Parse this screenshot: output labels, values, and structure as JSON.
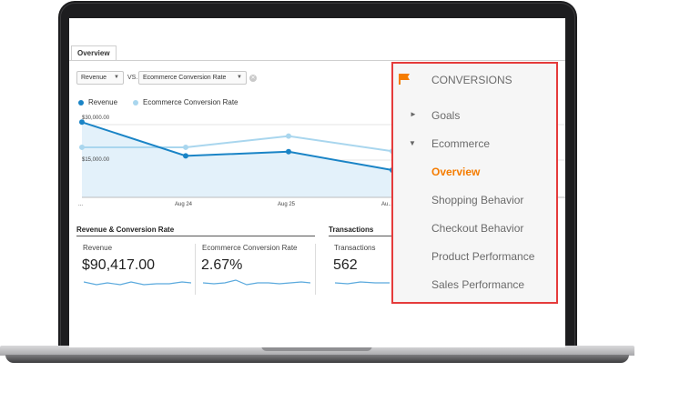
{
  "report": {
    "tab": "Overview",
    "metric_primary": "Revenue",
    "vs_label": "VS.",
    "metric_secondary": "Ecommerce Conversion Rate"
  },
  "legend": [
    {
      "label": "Revenue",
      "color": "#1a84c6"
    },
    {
      "label": "Ecommerce Conversion Rate",
      "color": "#a9d6ee"
    }
  ],
  "chart_data": {
    "type": "line",
    "x": [
      "...",
      "Aug 24",
      "Aug 25",
      "Au..."
    ],
    "y_ticks": [
      "$30,000.00",
      "$15,000.00"
    ],
    "series": [
      {
        "name": "Revenue",
        "values": [
          29000,
          16000,
          17600,
          10500
        ]
      },
      {
        "name": "Ecommerce Conversion Rate",
        "values": [
          19300,
          19300,
          23600,
          17800
        ]
      }
    ],
    "ylim": [
      0,
      34000
    ]
  },
  "sections": {
    "revenue_conversion_title": "Revenue & Conversion Rate",
    "transactions_title": "Transactions"
  },
  "metrics": [
    {
      "label": "Revenue",
      "value": "$90,417.00"
    },
    {
      "label": "Ecommerce Conversion Rate",
      "value": "2.67%"
    },
    {
      "label": "Transactions",
      "value": "562"
    }
  ],
  "sparkline_color": "#5aa9dd",
  "conversions_menu": {
    "title": "CONVERSIONS",
    "accent_color": "#f57c00",
    "border_color": "#e53b3b",
    "goals": "Goals",
    "ecommerce": "Ecommerce",
    "items": [
      "Overview",
      "Shopping Behavior",
      "Checkout Behavior",
      "Product Performance",
      "Sales Performance"
    ],
    "active_item": "Overview"
  }
}
